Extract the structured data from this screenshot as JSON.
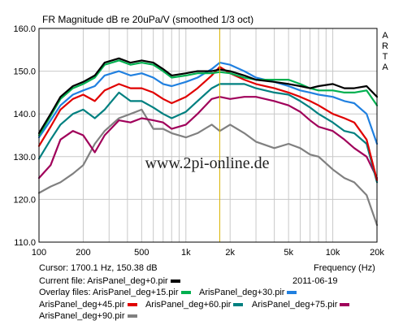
{
  "chart_data": {
    "type": "line",
    "title": "FR Magnitude dB re 20uPa/V (smoothed 1/3 oct)",
    "x_scale": "log",
    "xlim": [
      100,
      20000
    ],
    "ylim": [
      110,
      160
    ],
    "x_ticks": [
      {
        "value": 100,
        "label": "100"
      },
      {
        "value": 200,
        "label": "200"
      },
      {
        "value": 500,
        "label": "500"
      },
      {
        "value": 1000,
        "label": "1k"
      },
      {
        "value": 2000,
        "label": "2k"
      },
      {
        "value": 5000,
        "label": "5k"
      },
      {
        "value": 10000,
        "label": "10k"
      },
      {
        "value": 20000,
        "label": "20k"
      }
    ],
    "y_ticks": [
      {
        "value": 110,
        "label": "110.0"
      },
      {
        "value": 120,
        "label": "120.0"
      },
      {
        "value": 130,
        "label": "130.0"
      },
      {
        "value": 140,
        "label": "140.0"
      },
      {
        "value": 150,
        "label": "150.0"
      },
      {
        "value": 160,
        "label": "160.0"
      }
    ],
    "grid": true,
    "cursor": {
      "x": 1700.1,
      "color": "#d8b400"
    },
    "watermark": "www.2pi-online.de",
    "side_label": [
      "A",
      "R",
      "T",
      "A"
    ],
    "x_axis_title": "Frequency (Hz)",
    "series": [
      {
        "name": "ArisPanel_deg+0.pir",
        "color": "#000000",
        "points": [
          [
            100,
            135.5
          ],
          [
            120,
            140
          ],
          [
            140,
            144
          ],
          [
            170,
            146.5
          ],
          [
            200,
            147.5
          ],
          [
            240,
            149
          ],
          [
            280,
            152
          ],
          [
            350,
            153
          ],
          [
            420,
            152
          ],
          [
            500,
            152.5
          ],
          [
            600,
            152
          ],
          [
            700,
            150.5
          ],
          [
            800,
            149
          ],
          [
            1000,
            149.5
          ],
          [
            1200,
            150
          ],
          [
            1500,
            150
          ],
          [
            1700,
            150.4
          ],
          [
            2000,
            150
          ],
          [
            2500,
            149
          ],
          [
            3000,
            148
          ],
          [
            4000,
            147.5
          ],
          [
            5000,
            147
          ],
          [
            6000,
            146.5
          ],
          [
            7000,
            146
          ],
          [
            8000,
            146.5
          ],
          [
            10000,
            147
          ],
          [
            12000,
            146
          ],
          [
            14000,
            146
          ],
          [
            17000,
            146.5
          ],
          [
            20000,
            144
          ]
        ]
      },
      {
        "name": "ArisPanel_deg+15.pir",
        "color": "#00b050",
        "points": [
          [
            100,
            135
          ],
          [
            120,
            139.5
          ],
          [
            140,
            143.5
          ],
          [
            170,
            146
          ],
          [
            200,
            147
          ],
          [
            240,
            148.5
          ],
          [
            280,
            151.5
          ],
          [
            350,
            152.5
          ],
          [
            420,
            151.5
          ],
          [
            500,
            152
          ],
          [
            600,
            151.5
          ],
          [
            700,
            150
          ],
          [
            800,
            148.5
          ],
          [
            1000,
            149
          ],
          [
            1200,
            149.5
          ],
          [
            1500,
            149.5
          ],
          [
            1700,
            149.8
          ],
          [
            2000,
            149.5
          ],
          [
            2500,
            148.5
          ],
          [
            3000,
            148
          ],
          [
            4000,
            148
          ],
          [
            5000,
            148
          ],
          [
            6000,
            147
          ],
          [
            7000,
            146
          ],
          [
            8000,
            145.5
          ],
          [
            10000,
            145.5
          ],
          [
            12000,
            145
          ],
          [
            14000,
            145
          ],
          [
            17000,
            145.5
          ],
          [
            20000,
            142
          ]
        ]
      },
      {
        "name": "ArisPanel_deg+30.pir",
        "color": "#2080e0",
        "points": [
          [
            100,
            134.5
          ],
          [
            120,
            138.5
          ],
          [
            140,
            142
          ],
          [
            170,
            144.5
          ],
          [
            200,
            145.5
          ],
          [
            240,
            146.5
          ],
          [
            280,
            149
          ],
          [
            350,
            150
          ],
          [
            420,
            149
          ],
          [
            500,
            149.5
          ],
          [
            600,
            148.5
          ],
          [
            700,
            147
          ],
          [
            800,
            146.5
          ],
          [
            1000,
            147.5
          ],
          [
            1200,
            148.5
          ],
          [
            1500,
            150.5
          ],
          [
            1700,
            152
          ],
          [
            2000,
            151.5
          ],
          [
            2500,
            150
          ],
          [
            3000,
            148.5
          ],
          [
            4000,
            147.5
          ],
          [
            5000,
            146.5
          ],
          [
            6000,
            145.5
          ],
          [
            7000,
            145
          ],
          [
            8000,
            144.5
          ],
          [
            10000,
            144
          ],
          [
            12000,
            143
          ],
          [
            14000,
            142.5
          ],
          [
            17000,
            140
          ],
          [
            20000,
            133
          ]
        ]
      },
      {
        "name": "ArisPanel_deg+45.pir",
        "color": "#e00000",
        "points": [
          [
            100,
            132.5
          ],
          [
            120,
            137
          ],
          [
            140,
            141
          ],
          [
            170,
            143.5
          ],
          [
            200,
            144.5
          ],
          [
            240,
            143
          ],
          [
            280,
            145.5
          ],
          [
            350,
            147
          ],
          [
            420,
            146
          ],
          [
            500,
            146
          ],
          [
            600,
            145
          ],
          [
            700,
            143.5
          ],
          [
            800,
            142.5
          ],
          [
            1000,
            144
          ],
          [
            1200,
            146
          ],
          [
            1500,
            149
          ],
          [
            1700,
            151
          ],
          [
            2000,
            149.5
          ],
          [
            2500,
            148
          ],
          [
            3000,
            147
          ],
          [
            4000,
            146
          ],
          [
            5000,
            145
          ],
          [
            6000,
            144
          ],
          [
            7000,
            143
          ],
          [
            8000,
            142
          ],
          [
            10000,
            140
          ],
          [
            12000,
            139
          ],
          [
            14000,
            138
          ],
          [
            17000,
            134
          ],
          [
            20000,
            124.5
          ]
        ]
      },
      {
        "name": "ArisPanel_deg+60.pir",
        "color": "#008080",
        "points": [
          [
            100,
            129.5
          ],
          [
            120,
            134
          ],
          [
            140,
            137.5
          ],
          [
            170,
            140
          ],
          [
            200,
            141
          ],
          [
            240,
            139
          ],
          [
            280,
            141
          ],
          [
            350,
            145
          ],
          [
            420,
            143
          ],
          [
            500,
            143
          ],
          [
            600,
            141.5
          ],
          [
            700,
            140
          ],
          [
            800,
            139
          ],
          [
            1000,
            140.5
          ],
          [
            1200,
            143
          ],
          [
            1500,
            146
          ],
          [
            1700,
            147
          ],
          [
            2000,
            147
          ],
          [
            2500,
            147
          ],
          [
            3000,
            146
          ],
          [
            4000,
            145
          ],
          [
            5000,
            144.5
          ],
          [
            6000,
            143
          ],
          [
            7000,
            141.5
          ],
          [
            8000,
            140
          ],
          [
            10000,
            138
          ],
          [
            12000,
            136
          ],
          [
            14000,
            135.5
          ],
          [
            17000,
            133
          ],
          [
            20000,
            124
          ]
        ]
      },
      {
        "name": "ArisPanel_deg+75.pir",
        "color": "#a0005a",
        "points": [
          [
            100,
            125
          ],
          [
            120,
            128
          ],
          [
            140,
            134
          ],
          [
            170,
            136
          ],
          [
            200,
            135
          ],
          [
            240,
            131
          ],
          [
            280,
            135
          ],
          [
            350,
            138.5
          ],
          [
            420,
            138
          ],
          [
            500,
            139
          ],
          [
            600,
            138.5
          ],
          [
            700,
            138
          ],
          [
            800,
            136.5
          ],
          [
            1000,
            137.5
          ],
          [
            1200,
            140
          ],
          [
            1500,
            143.5
          ],
          [
            1700,
            144
          ],
          [
            2000,
            143.5
          ],
          [
            2500,
            144
          ],
          [
            3000,
            144
          ],
          [
            4000,
            143
          ],
          [
            5000,
            142
          ],
          [
            6000,
            140.5
          ],
          [
            7000,
            138.5
          ],
          [
            8000,
            137
          ],
          [
            10000,
            136
          ],
          [
            12000,
            134
          ],
          [
            14000,
            132
          ],
          [
            17000,
            130
          ],
          [
            20000,
            125
          ]
        ]
      },
      {
        "name": "ArisPanel_deg+90.pir",
        "color": "#808080",
        "points": [
          [
            100,
            121.5
          ],
          [
            120,
            123
          ],
          [
            140,
            124
          ],
          [
            170,
            126
          ],
          [
            200,
            128
          ],
          [
            240,
            133
          ],
          [
            280,
            136
          ],
          [
            350,
            139
          ],
          [
            420,
            140
          ],
          [
            500,
            141
          ],
          [
            600,
            136.5
          ],
          [
            700,
            136.5
          ],
          [
            800,
            135.5
          ],
          [
            1000,
            134.5
          ],
          [
            1200,
            135.5
          ],
          [
            1500,
            137.5
          ],
          [
            1700,
            136
          ],
          [
            2000,
            137.5
          ],
          [
            2500,
            135.5
          ],
          [
            3000,
            133.5
          ],
          [
            4000,
            132
          ],
          [
            5000,
            133
          ],
          [
            6000,
            132
          ],
          [
            7000,
            130.5
          ],
          [
            8000,
            130
          ],
          [
            10000,
            127
          ],
          [
            12000,
            125
          ],
          [
            14000,
            124
          ],
          [
            17000,
            121
          ],
          [
            20000,
            114
          ]
        ]
      }
    ]
  },
  "info": {
    "cursor_text": "Cursor: 1700.1 Hz, 150.38 dB",
    "frequency_label": "Frequency (Hz)",
    "current_file_label": "Current file: ArisPanel_deg+0.pir",
    "date": "2011-06-19",
    "overlay_files_label": "Overlay files:",
    "overlay_1": "ArisPanel_deg+15.pir",
    "overlay_2": "ArisPanel_deg+30.pir",
    "overlay_3": "ArisPanel_deg+45.pir",
    "overlay_4": "ArisPanel_deg+60.pir",
    "overlay_5": "ArisPanel_deg+75.pir",
    "overlay_6": "ArisPanel_deg+90.pir",
    "color_current": "#000000",
    "color_1": "#00b050",
    "color_2": "#2080e0",
    "color_3": "#e00000",
    "color_4": "#008080",
    "color_5": "#a0005a",
    "color_6": "#808080"
  }
}
